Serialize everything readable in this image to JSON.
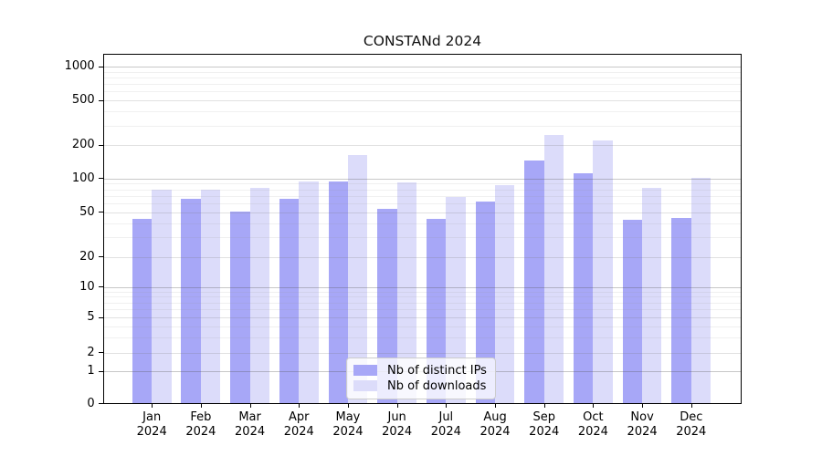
{
  "chart_data": {
    "type": "bar",
    "title": "CONSTANd 2024",
    "categories": [
      "Jan",
      "Feb",
      "Mar",
      "Apr",
      "May",
      "Jun",
      "Jul",
      "Aug",
      "Sep",
      "Oct",
      "Nov",
      "Dec"
    ],
    "year": "2024",
    "series": [
      {
        "name": "Nb of distinct IPs",
        "color": "#a7a7f7",
        "values": [
          44,
          66,
          51,
          66,
          94,
          54,
          44,
          62,
          145,
          112,
          43,
          45
        ]
      },
      {
        "name": "Nb of downloads",
        "color": "#dcdcfa",
        "values": [
          79,
          79,
          83,
          94,
          164,
          93,
          69,
          88,
          249,
          220,
          83,
          102
        ]
      }
    ],
    "yscale": "symlog",
    "yticks": [
      0,
      1,
      2,
      5,
      10,
      20,
      50,
      100,
      200,
      500,
      1000
    ],
    "minor_yticks": [
      3,
      4,
      6,
      7,
      8,
      9,
      30,
      40,
      60,
      70,
      80,
      90,
      300,
      400,
      600,
      700,
      800,
      900
    ],
    "ylim": [
      0,
      1300
    ],
    "xlabel": "",
    "ylabel": "",
    "grid": true,
    "legend_position": "lower-center"
  }
}
